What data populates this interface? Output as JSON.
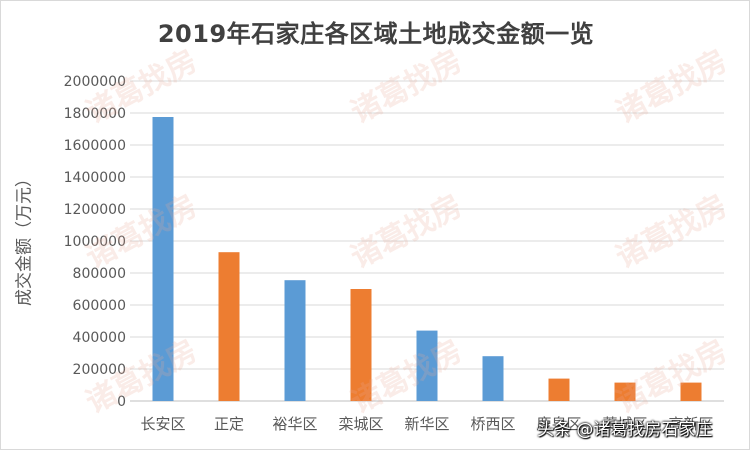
{
  "chart_data": {
    "type": "bar",
    "title": "2019年石家庄各区域土地成交金额一览",
    "ylabel": "成交金额（万元）",
    "xlabel": "",
    "categories": [
      "长安区",
      "正定",
      "裕华区",
      "栾城区",
      "新华区",
      "桥西区",
      "鹿泉区",
      "藁城区",
      "高新区"
    ],
    "values": [
      1775000,
      930000,
      755000,
      700000,
      440000,
      280000,
      140000,
      115000,
      115000
    ],
    "bar_colors": [
      "#5b9bd5",
      "#ed7d31",
      "#5b9bd5",
      "#ed7d31",
      "#5b9bd5",
      "#5b9bd5",
      "#ed7d31",
      "#ed7d31",
      "#ed7d31"
    ],
    "ylim": [
      0,
      2000000
    ],
    "yticks": [
      0,
      200000,
      400000,
      600000,
      800000,
      1000000,
      1200000,
      1400000,
      1600000,
      1800000,
      2000000
    ],
    "ytick_labels": [
      "0",
      "200000",
      "400000",
      "600000",
      "800000",
      "1000000",
      "1200000",
      "1400000",
      "1600000",
      "1800000",
      "2000000"
    ],
    "grid": true,
    "legend": "none"
  },
  "watermark": {
    "text": "诸葛找房"
  },
  "credit": {
    "text": "头条 @诸葛找房石家庄"
  }
}
